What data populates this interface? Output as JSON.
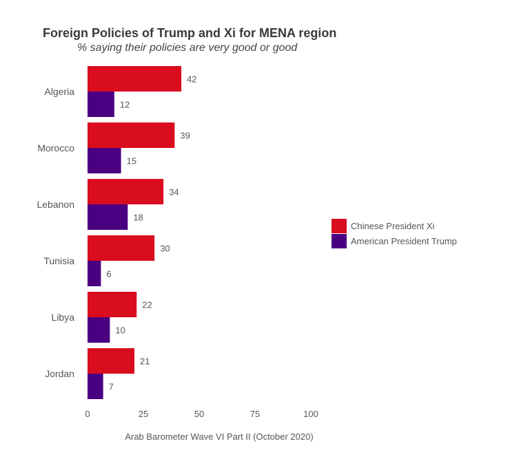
{
  "chart_data": {
    "type": "bar",
    "orientation": "horizontal",
    "title": "Foreign Policies of Trump and Xi for MENA region",
    "subtitle": "% saying their policies are very good or good",
    "caption": "Arab Barometer Wave VI Part II (October 2020)",
    "categories": [
      "Algeria",
      "Morocco",
      "Lebanon",
      "Tunisia",
      "Libya",
      "Jordan"
    ],
    "series": [
      {
        "name": "Chinese President Xi",
        "color": "#d90d1e",
        "values": [
          42,
          39,
          34,
          30,
          22,
          21
        ]
      },
      {
        "name": "American President Trump",
        "color": "#4b0082",
        "values": [
          12,
          15,
          18,
          6,
          10,
          7
        ]
      }
    ],
    "x_ticks": [
      0,
      25,
      50,
      75,
      100
    ],
    "xlim": [
      0,
      100
    ],
    "grid": false,
    "legend_position": "right"
  }
}
